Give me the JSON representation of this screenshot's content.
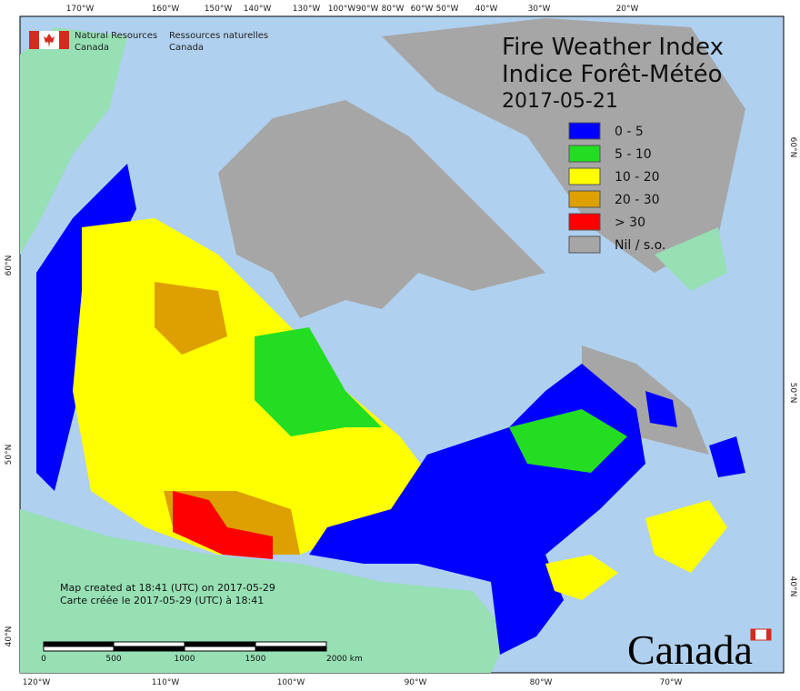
{
  "header": {
    "title": "Fire Weather Index",
    "title_fr": "Indice Forêt-Météo",
    "date": "2017-05-21",
    "agency_en": [
      "Natural Resources",
      "Canada"
    ],
    "agency_fr": [
      "Ressources naturelles",
      "Canada"
    ]
  },
  "legend": [
    {
      "label": "0 - 5",
      "color": "#0000ff"
    },
    {
      "label": "5 - 10",
      "color": "#22dd22"
    },
    {
      "label": "10 - 20",
      "color": "#ffff00"
    },
    {
      "label": "20 - 30",
      "color": "#dda000"
    },
    {
      "label": "> 30",
      "color": "#ff0000"
    },
    {
      "label": "Nil / s.o.",
      "color": "#a6a6a6"
    }
  ],
  "graticule": {
    "top": [
      "170°W",
      "160°W",
      "150°W",
      "140°W",
      "130°W",
      "100°W",
      "90°W",
      "80°W",
      "60°W",
      "50°W",
      "40°W",
      "30°W",
      "20°W"
    ],
    "bottom": [
      "120°W",
      "110°W",
      "100°W",
      "90°W",
      "80°W",
      "70°W"
    ],
    "left": [
      "60°N",
      "50°N",
      "40°N"
    ],
    "right": [
      "60°N",
      "50°N",
      "40°N"
    ]
  },
  "footer": [
    "Map created at 18:41 (UTC) on 2017-05-29",
    "Carte créée le 2017-05-29 (UTC) à 18:41"
  ],
  "scale_bar": [
    "0",
    "500",
    "1000",
    "1500",
    "2000 km"
  ],
  "wordmark": "Canada"
}
